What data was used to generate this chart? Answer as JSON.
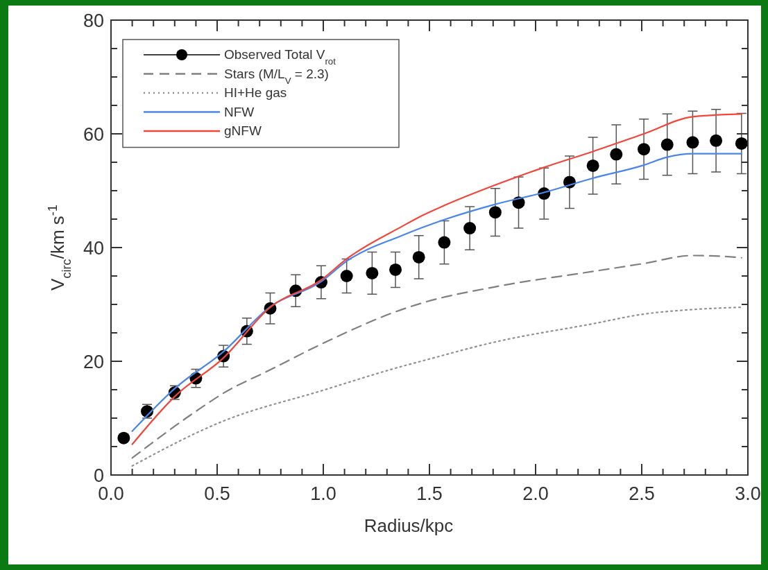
{
  "chart_data": {
    "type": "line",
    "xlabel": "Radius/kpc",
    "ylabel": "V$_{circ}$/km s$^{-1}$",
    "xlim": [
      0,
      3
    ],
    "ylim": [
      0,
      80
    ],
    "xticks": [
      {
        "value": 0,
        "label": "0.0"
      },
      {
        "value": 0.1,
        "label": null
      },
      {
        "value": 0.2,
        "label": null
      },
      {
        "value": 0.3,
        "label": null
      },
      {
        "value": 0.4,
        "label": null
      },
      {
        "value": 0.5,
        "label": "0.5"
      },
      {
        "value": 0.6,
        "label": null
      },
      {
        "value": 0.7,
        "label": null
      },
      {
        "value": 0.8,
        "label": null
      },
      {
        "value": 0.9,
        "label": null
      },
      {
        "value": 1,
        "label": "1.0"
      },
      {
        "value": 1.1,
        "label": null
      },
      {
        "value": 1.2,
        "label": null
      },
      {
        "value": 1.3,
        "label": null
      },
      {
        "value": 1.4,
        "label": null
      },
      {
        "value": 1.5,
        "label": "1.5"
      },
      {
        "value": 1.6,
        "label": null
      },
      {
        "value": 1.7,
        "label": null
      },
      {
        "value": 1.8,
        "label": null
      },
      {
        "value": 1.9,
        "label": null
      },
      {
        "value": 2,
        "label": "2.0"
      },
      {
        "value": 2.1,
        "label": null
      },
      {
        "value": 2.2,
        "label": null
      },
      {
        "value": 2.3,
        "label": null
      },
      {
        "value": 2.4,
        "label": null
      },
      {
        "value": 2.5,
        "label": "2.5"
      },
      {
        "value": 2.6,
        "label": null
      },
      {
        "value": 2.7,
        "label": null
      },
      {
        "value": 2.8,
        "label": null
      },
      {
        "value": 2.9,
        "label": null
      },
      {
        "value": 3,
        "label": "3.0"
      }
    ],
    "yticks": [
      0,
      {
        "value": 5,
        "label": null
      },
      {
        "value": 10,
        "label": null
      },
      {
        "value": 15,
        "label": null
      },
      20,
      {
        "value": 25,
        "label": null
      },
      {
        "value": 30,
        "label": null
      },
      {
        "value": 35,
        "label": null
      },
      40,
      {
        "value": 45,
        "label": null
      },
      {
        "value": 50,
        "label": null
      },
      {
        "value": 55,
        "label": null
      },
      60,
      {
        "value": 65,
        "label": null
      },
      {
        "value": 70,
        "label": null
      },
      {
        "value": 75,
        "label": null
      },
      80
    ],
    "legend": "top left",
    "grid": false,
    "series": [
      {
        "name": "Observed Total V$_{rot}$",
        "type": "scatter",
        "marker": "circle",
        "color": "#000000",
        "x": [
          0.06,
          0.17,
          0.3,
          0.4,
          0.53,
          0.64,
          0.75,
          0.87,
          0.99,
          1.11,
          1.23,
          1.34,
          1.45,
          1.57,
          1.69,
          1.81,
          1.92,
          2.04,
          2.16,
          2.27,
          2.38,
          2.51,
          2.62,
          2.74,
          2.85,
          2.97
        ],
        "values": [
          6.5,
          11.2,
          14.5,
          17.0,
          20.9,
          25.3,
          29.3,
          32.4,
          33.9,
          35.0,
          35.5,
          36.1,
          38.3,
          40.9,
          43.4,
          46.2,
          47.9,
          49.5,
          51.5,
          54.4,
          56.4,
          57.3,
          58.1,
          58.5,
          58.8,
          58.3
        ],
        "errors": [
          null,
          1.2,
          1.2,
          1.6,
          1.9,
          2.3,
          2.7,
          2.8,
          2.9,
          3.0,
          3.7,
          3.1,
          3.8,
          3.8,
          3.8,
          4.2,
          4.5,
          4.5,
          4.6,
          5.0,
          5.2,
          5.3,
          5.4,
          5.5,
          5.5,
          5.3
        ]
      },
      {
        "name": "Stars (M/L$_{V}$ = 2.3)",
        "line_style": "dashed",
        "color": "#808080",
        "x": [
          0.1,
          0.4,
          0.53,
          0.75,
          0.99,
          1.37,
          1.47,
          1.81,
          2.27,
          2.51,
          2.74,
          2.94,
          2.97
        ],
        "values": [
          3.0,
          11.2,
          14.4,
          18.5,
          23.0,
          29.1,
          30.3,
          33.1,
          35.8,
          37.2,
          38.6,
          38.3,
          38.2
        ]
      },
      {
        "name": "HI+He gas",
        "line_style": "dotted",
        "color": "#909090",
        "x": [
          0.1,
          0.53,
          0.99,
          1.37,
          1.47,
          1.81,
          2.27,
          2.51,
          2.74,
          2.97
        ],
        "values": [
          1.6,
          9.5,
          14.8,
          19.1,
          20.1,
          23.4,
          26.6,
          28.3,
          29.1,
          29.5
        ]
      },
      {
        "name": "NFW",
        "line_style": "solid",
        "color": "#4a86e8",
        "x": [
          0.1,
          0.3,
          0.53,
          0.75,
          0.99,
          1.11,
          1.37,
          1.57,
          1.81,
          2.04,
          2.27,
          2.51,
          2.62,
          2.74,
          2.97
        ],
        "values": [
          7.7,
          15.2,
          21.7,
          29.6,
          34.0,
          37.6,
          42.1,
          44.9,
          47.6,
          49.7,
          52.2,
          54.5,
          55.9,
          56.5,
          56.5
        ]
      },
      {
        "name": "gNFW",
        "line_style": "solid",
        "color": "#f0463c",
        "x": [
          0.1,
          0.3,
          0.53,
          0.75,
          0.99,
          1.11,
          1.37,
          1.47,
          1.57,
          1.81,
          2.04,
          2.27,
          2.51,
          2.74,
          2.97
        ],
        "values": [
          5.4,
          13.8,
          20.6,
          29.5,
          34.3,
          38.0,
          43.7,
          45.7,
          47.4,
          51.0,
          54.1,
          56.9,
          60.0,
          63.0,
          63.5
        ]
      }
    ]
  }
}
